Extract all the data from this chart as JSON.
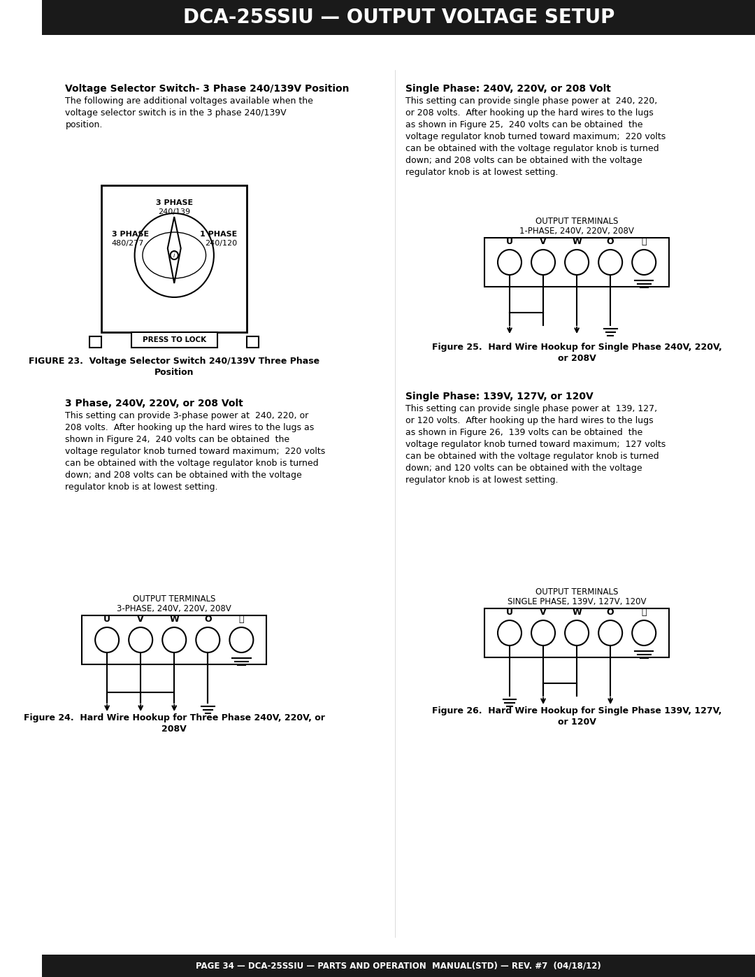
{
  "title": "DCA-25SSIU — OUTPUT VOLTAGE SETUP",
  "footer": "PAGE 34 — DCA-25SSIU — PARTS AND OPERATION  MANUAL(STD) — REV. #7  (04/18/12)",
  "left_heading": "Voltage Selector Switch- 3 Phase 240/139V Position",
  "left_para1": "The following are additional voltages available when the\nvoltage selector switch is in the 3 phase 240/139V\nposition.",
  "right_heading": "Single Phase: 240V, 220V, or 208 Volt",
  "right_para1": "This setting can provide single phase power at  240, 220,\nor 208 volts.  After hooking up the hard wires to the lugs\nas shown in Figure 25,  240 volts can be obtained  the\nvoltage regulator knob turned toward maximum;  220 volts\ncan be obtained with the voltage regulator knob is turned\ndown; and 208 volts can be obtained with the voltage\nregulator knob is at lowest setting.",
  "left_heading2": "3 Phase, 240V, 220V, or 208 Volt",
  "left_para2": "This setting can provide 3-phase power at  240, 220, or\n208 volts.  After hooking up the hard wires to the lugs as\nshown in Figure 24,  240 volts can be obtained  the\nvoltage regulator knob turned toward maximum;  220 volts\ncan be obtained with the voltage regulator knob is turned\ndown; and 208 volts can be obtained with the voltage\nregulator knob is at lowest setting.",
  "right_heading2": "Single Phase: 139V, 127V, or 120V",
  "right_para2": "This setting can provide single phase power at  139, 127,\nor 120 volts.  After hooking up the hard wires to the lugs\nas shown in Figure 26,  139 volts can be obtained  the\nvoltage regulator knob turned toward maximum;  127 volts\ncan be obtained with the voltage regulator knob is turned\ndown; and 120 volts can be obtained with the voltage\nregulator knob is at lowest setting.",
  "fig23_caption": "FIGURE 23.  Voltage Selector Switch 240/139V Three Phase\nPosition",
  "fig24_caption": "Figure 24.  Hard Wire Hookup for Three Phase 240V, 220V, or\n208V",
  "fig25_caption": "Figure 25.  Hard Wire Hookup for Single Phase 240V, 220V,\nor 208V",
  "fig26_caption": "Figure 26.  Hard Wire Hookup for Single Phase 139V, 127V,\nor 120V",
  "fig24_subtitle1": "OUTPUT TERMINALS",
  "fig24_subtitle2": "3-PHASE, 240V, 220V, 208V",
  "fig25_subtitle1": "OUTPUT TERMINALS",
  "fig25_subtitle2": "1-PHASE, 240V, 220V, 208V",
  "fig26_subtitle1": "OUTPUT TERMINALS",
  "fig26_subtitle2": "SINGLE PHASE, 139V, 127V, 120V",
  "terminal_labels": [
    "U",
    "V",
    "W",
    "O"
  ],
  "ground_symbol": "⏚",
  "bg_color": "#ffffff",
  "title_bg": "#1a1a1a",
  "title_fg": "#ffffff",
  "footer_bg": "#1a1a1a",
  "footer_fg": "#ffffff",
  "text_color": "#000000"
}
